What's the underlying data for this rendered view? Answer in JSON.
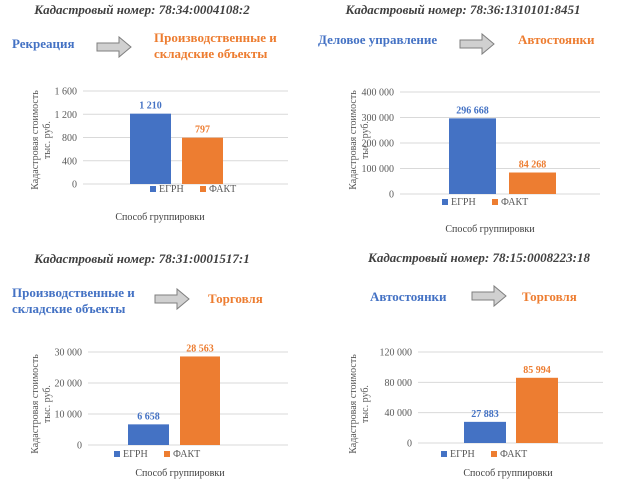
{
  "colors": {
    "egrn": "#4472C4",
    "fact": "#ED7D31",
    "heading": "#404040",
    "axis_text": "#595959",
    "grid": "#d9d9d9",
    "arrow_fill": "#d0d0d0",
    "arrow_stroke": "#7f7f7f"
  },
  "chart_data": [
    {
      "type": "bar",
      "heading": "Кадастровый номер: 78:34:0004108:2",
      "from_label": [
        "Рекреация"
      ],
      "to_label": [
        "Производственные  и",
        "складские объекты"
      ],
      "ylabel": [
        "Кадастровая стоимость",
        "тыс. руб."
      ],
      "xlabel": "Способ группировки",
      "ylim": [
        0,
        1600
      ],
      "yticks": [
        0,
        400,
        800,
        1200,
        1600
      ],
      "ytick_labels": [
        "0",
        "400",
        "800",
        "1 200",
        "1 600"
      ],
      "series": [
        {
          "name": "ЕГРН",
          "value": 1210,
          "value_label": "1 210"
        },
        {
          "name": "ФАКТ",
          "value": 797,
          "value_label": "797"
        }
      ]
    },
    {
      "type": "bar",
      "heading": "Кадастровый номер: 78:36:1310101:8451",
      "from_label": [
        "Деловое управление"
      ],
      "to_label": [
        "Автостоянки"
      ],
      "ylabel": [
        "Кадастровая стоимость",
        "тыс. руб."
      ],
      "xlabel": "Способ группировки",
      "ylim": [
        0,
        400000
      ],
      "yticks": [
        0,
        100000,
        200000,
        300000,
        400000
      ],
      "ytick_labels": [
        "0",
        "100 000",
        "200 000",
        "300 000",
        "400 000"
      ],
      "series": [
        {
          "name": "ЕГРН",
          "value": 296668,
          "value_label": "296 668"
        },
        {
          "name": "ФАКТ",
          "value": 84268,
          "value_label": "84 268"
        }
      ]
    },
    {
      "type": "bar",
      "heading": "Кадастровый номер: 78:31:0001517:1",
      "from_label": [
        "Производственные  и",
        "складские объекты"
      ],
      "to_label": [
        "Торговля"
      ],
      "ylabel": [
        "Кадастровая стоимость",
        "тыс. руб."
      ],
      "xlabel": "Способ группировки",
      "ylim": [
        0,
        30000
      ],
      "yticks": [
        0,
        10000,
        20000,
        30000
      ],
      "ytick_labels": [
        "0",
        "10 000",
        "20 000",
        "30 000"
      ],
      "series": [
        {
          "name": "ЕГРН",
          "value": 6658,
          "value_label": "6 658"
        },
        {
          "name": "ФАКТ",
          "value": 28563,
          "value_label": "28 563"
        }
      ]
    },
    {
      "type": "bar",
      "heading": "Кадастровый номер: 78:15:0008223:18",
      "from_label": [
        "Автостоянки"
      ],
      "to_label": [
        "Торговля"
      ],
      "ylabel": [
        "Кадастровая стоимость",
        "тыс. руб."
      ],
      "xlabel": "Способ группировки",
      "ylim": [
        0,
        120000
      ],
      "yticks": [
        0,
        40000,
        80000,
        120000
      ],
      "ytick_labels": [
        "0",
        "40 000",
        "80 000",
        "120 000"
      ],
      "series": [
        {
          "name": "ЕГРН",
          "value": 27883,
          "value_label": "27 883"
        },
        {
          "name": "ФАКТ",
          "value": 85994,
          "value_label": "85 994"
        }
      ]
    }
  ]
}
